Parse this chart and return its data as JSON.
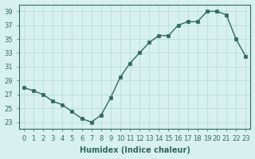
{
  "x": [
    0,
    1,
    2,
    3,
    4,
    5,
    6,
    7,
    8,
    9,
    10,
    11,
    12,
    13,
    14,
    15,
    16,
    17,
    18,
    19,
    20,
    21,
    22,
    23
  ],
  "y": [
    28,
    27.5,
    27,
    26,
    25.5,
    24.5,
    23.5,
    23,
    24,
    26.5,
    29.5,
    31.5,
    33,
    34.5,
    35.5,
    35.5,
    37,
    37.5,
    37.5,
    39,
    39,
    38.5,
    35,
    32.5
  ],
  "line_color": "#2e6b5e",
  "marker_color": "#2e6b5e",
  "bg_color": "#d8f0f0",
  "grid_color": "#b0d8d8",
  "xlabel": "Humidex (Indice chaleur)",
  "ylim": [
    22,
    40
  ],
  "xlim": [
    -0.5,
    23.5
  ],
  "yticks": [
    23,
    25,
    27,
    29,
    31,
    33,
    35,
    37,
    39
  ],
  "xticks": [
    0,
    1,
    2,
    3,
    4,
    5,
    6,
    7,
    8,
    9,
    10,
    11,
    12,
    13,
    14,
    15,
    16,
    17,
    18,
    19,
    20,
    21,
    22,
    23
  ],
  "tick_fontsize": 6,
  "label_fontsize": 7
}
